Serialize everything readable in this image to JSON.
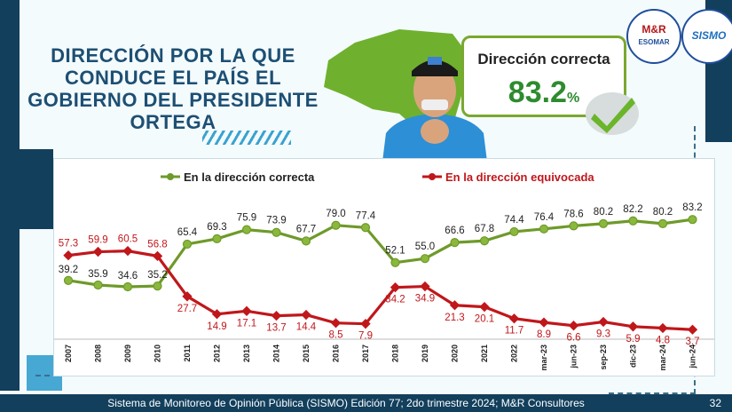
{
  "title": "DIRECCIÓN POR LA QUE CONDUCE EL PAÍS EL GOBIERNO DEL PRESIDENTE ORTEGA",
  "kpi": {
    "label": "Dirección correcta",
    "value": "83.2",
    "unit": "%"
  },
  "logos": {
    "left_main": "M&R",
    "left_sub": "ESOMAR",
    "right": "SISMO"
  },
  "footer": {
    "text": "Sistema de Monitoreo de Opinión Pública (SISMO) Edición 77; 2do trimestre 2024; M&R Consultores",
    "page": "32"
  },
  "colors": {
    "correct": "#6e9a2a",
    "wrong": "#c0171b",
    "navy": "#123f5c"
  },
  "chart_data": {
    "type": "line",
    "categories": [
      "2007",
      "2008",
      "2009",
      "2010",
      "2011",
      "2012",
      "2013",
      "2014",
      "2015",
      "2016",
      "2017",
      "2018",
      "2019",
      "2020",
      "2021",
      "2022",
      "mar-23",
      "jun-23",
      "sep-23",
      "dic-23",
      "mar-24",
      "jun-24"
    ],
    "series": [
      {
        "name": "En la dirección correcta",
        "values": [
          39.2,
          35.9,
          34.6,
          35.2,
          65.4,
          69.3,
          75.9,
          73.9,
          67.7,
          79.0,
          77.4,
          52.1,
          55.0,
          66.6,
          67.8,
          74.4,
          76.4,
          78.6,
          80.2,
          82.2,
          80.2,
          83.2
        ],
        "labels": [
          "39.2",
          "35.9",
          "34.6",
          "35.2",
          "65.4",
          "69.3",
          "75.9",
          "73.9",
          "67.7",
          "79.0",
          "77.4",
          "52.1",
          "55.0",
          "66.6",
          "67.8",
          "74.4",
          "76.4",
          "78.6",
          "80.2",
          "82.2",
          "80.2",
          "83.2"
        ]
      },
      {
        "name": "En la dirección equivocada",
        "values": [
          57.3,
          59.9,
          60.5,
          56.8,
          27.7,
          14.9,
          17.1,
          13.7,
          14.4,
          8.5,
          7.9,
          34.2,
          34.9,
          21.3,
          20.1,
          11.7,
          8.9,
          6.6,
          9.3,
          5.9,
          4.8,
          3.7
        ],
        "labels": [
          "57.3",
          "59.9",
          "60.5",
          "56.8",
          "27.7",
          "14.9",
          "17.1",
          "13.7",
          "14.4",
          "8.5",
          "7.9",
          "34.2",
          "34.9",
          "21.3",
          "20.1",
          "11.7",
          "8.9",
          "6.6",
          "9.3",
          "5.9",
          "4.8",
          "3.7"
        ]
      }
    ],
    "ylim": [
      0,
      100
    ],
    "grid": false,
    "legend_position": "top"
  }
}
